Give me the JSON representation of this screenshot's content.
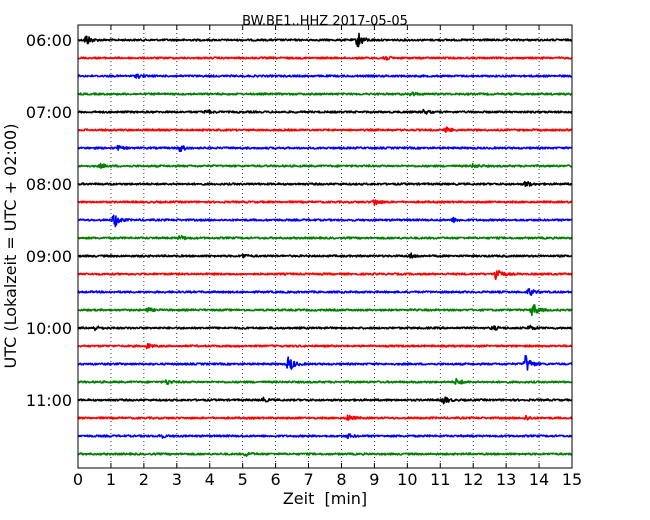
{
  "chart_data": {
    "type": "line",
    "title": "BW.BE1..HHZ 2017-05-05",
    "xlabel": "Zeit  [min]",
    "ylabel": "UTC (Lokalzeit = UTC + 02:00)",
    "xlim": [
      0,
      15
    ],
    "x_ticks": [
      "0",
      "1",
      "2",
      "3",
      "4",
      "5",
      "6",
      "7",
      "8",
      "9",
      "10",
      "11",
      "12",
      "13",
      "14",
      "15"
    ],
    "y_ticks": [
      "06:00",
      "07:00",
      "08:00",
      "09:00",
      "10:00",
      "11:00"
    ],
    "grid": true,
    "trace_colors": [
      "#000000",
      "#ff0000",
      "#0000ff",
      "#008000"
    ],
    "traces": [
      {
        "start": "06:00",
        "events": [
          [
            0.25,
            3.0
          ],
          [
            8.5,
            4.5
          ]
        ]
      },
      {
        "start": "06:15",
        "events": [
          [
            9.3,
            1.5
          ]
        ]
      },
      {
        "start": "06:30",
        "events": [
          [
            1.8,
            1.0
          ]
        ]
      },
      {
        "start": "06:45",
        "events": [
          [
            10.1,
            1.2
          ]
        ]
      },
      {
        "start": "07:00",
        "events": [
          [
            3.9,
            1.0
          ],
          [
            10.5,
            1.2
          ]
        ]
      },
      {
        "start": "07:15",
        "events": [
          [
            11.2,
            1.2
          ]
        ]
      },
      {
        "start": "07:30",
        "events": [
          [
            1.2,
            1.0
          ],
          [
            3.1,
            1.8
          ]
        ]
      },
      {
        "start": "07:45",
        "events": [
          [
            0.7,
            1.0
          ],
          [
            12.0,
            1.0
          ]
        ]
      },
      {
        "start": "08:00",
        "events": [
          [
            13.6,
            1.5
          ]
        ]
      },
      {
        "start": "08:15",
        "events": [
          [
            9.0,
            1.8
          ]
        ]
      },
      {
        "start": "08:30",
        "events": [
          [
            1.1,
            4.0
          ],
          [
            11.4,
            1.0
          ]
        ]
      },
      {
        "start": "08:45",
        "events": [
          [
            3.1,
            1.2
          ]
        ]
      },
      {
        "start": "09:00",
        "events": [
          [
            5.0,
            1.0
          ],
          [
            10.1,
            1.2
          ]
        ]
      },
      {
        "start": "09:15",
        "events": [
          [
            12.7,
            4.5
          ]
        ]
      },
      {
        "start": "09:30",
        "events": [
          [
            13.7,
            2.0
          ]
        ]
      },
      {
        "start": "09:45",
        "events": [
          [
            2.1,
            1.2
          ],
          [
            13.8,
            4.0
          ]
        ]
      },
      {
        "start": "10:00",
        "events": [
          [
            0.5,
            1.2
          ],
          [
            12.6,
            1.2
          ],
          [
            13.7,
            1.2
          ]
        ]
      },
      {
        "start": "10:15",
        "events": [
          [
            2.1,
            1.2
          ]
        ]
      },
      {
        "start": "10:30",
        "events": [
          [
            6.4,
            4.5
          ],
          [
            13.6,
            5.0
          ]
        ]
      },
      {
        "start": "10:45",
        "events": [
          [
            2.7,
            1.2
          ],
          [
            11.5,
            1.8
          ]
        ]
      },
      {
        "start": "11:00",
        "events": [
          [
            5.6,
            1.2
          ],
          [
            11.1,
            2.2
          ]
        ]
      },
      {
        "start": "11:15",
        "events": [
          [
            8.2,
            1.5
          ],
          [
            13.6,
            1.2
          ]
        ]
      },
      {
        "start": "11:30",
        "events": [
          [
            2.5,
            1.0
          ],
          [
            8.2,
            1.0
          ]
        ]
      },
      {
        "start": "11:45",
        "events": [
          [
            5.1,
            1.0
          ]
        ]
      }
    ]
  }
}
